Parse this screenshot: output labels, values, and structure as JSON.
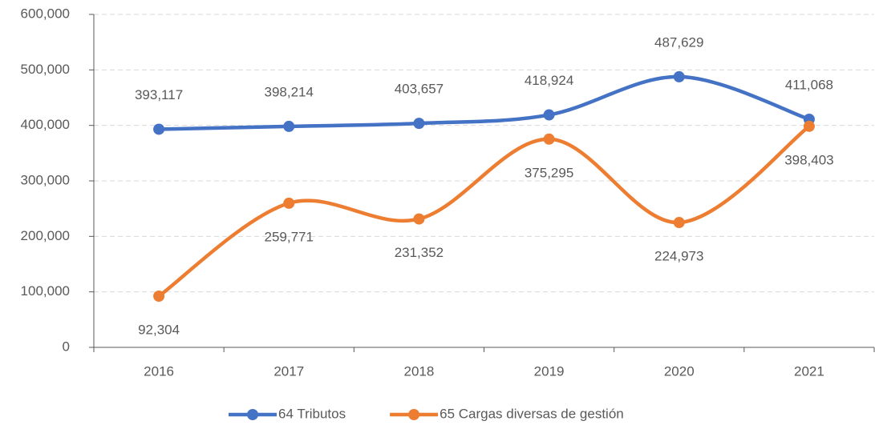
{
  "chart_data": {
    "type": "line",
    "categories": [
      "2016",
      "2017",
      "2018",
      "2019",
      "2020",
      "2021"
    ],
    "series": [
      {
        "name": "64 Tributos",
        "color": "#4472c4",
        "values": [
          393117,
          398214,
          403657,
          418924,
          487629,
          411068
        ],
        "value_labels": [
          "393,117",
          "398,214",
          "403,657",
          "418,924",
          "487,629",
          "411,068"
        ]
      },
      {
        "name": "65 Cargas diversas de gestión",
        "color": "#ed7d31",
        "values": [
          92304,
          259771,
          231352,
          375295,
          224973,
          398403
        ],
        "value_labels": [
          "92,304",
          "259,771",
          "231,352",
          "375,295",
          "224,973",
          "398,403"
        ]
      }
    ],
    "ylim": [
      0,
      600000
    ],
    "yticks": [
      0,
      {
        "value": 100000,
        "label": "100,000"
      },
      {
        "value": 200000,
        "label": "200,000"
      },
      {
        "value": 300000,
        "label": "300,000"
      },
      {
        "value": 400000,
        "label": "400,000"
      },
      {
        "value": 500000,
        "label": "500,000"
      },
      {
        "value": 600000,
        "label": "600,000"
      }
    ],
    "grid": true,
    "smooth": true,
    "legend": "bottom"
  }
}
